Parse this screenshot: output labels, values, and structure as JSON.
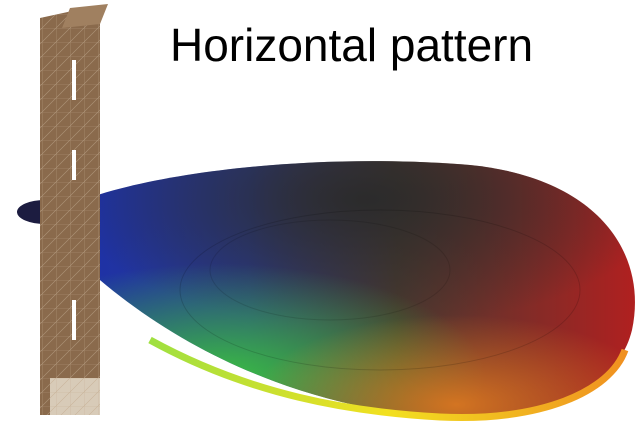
{
  "title": "Horizontal pattern"
}
